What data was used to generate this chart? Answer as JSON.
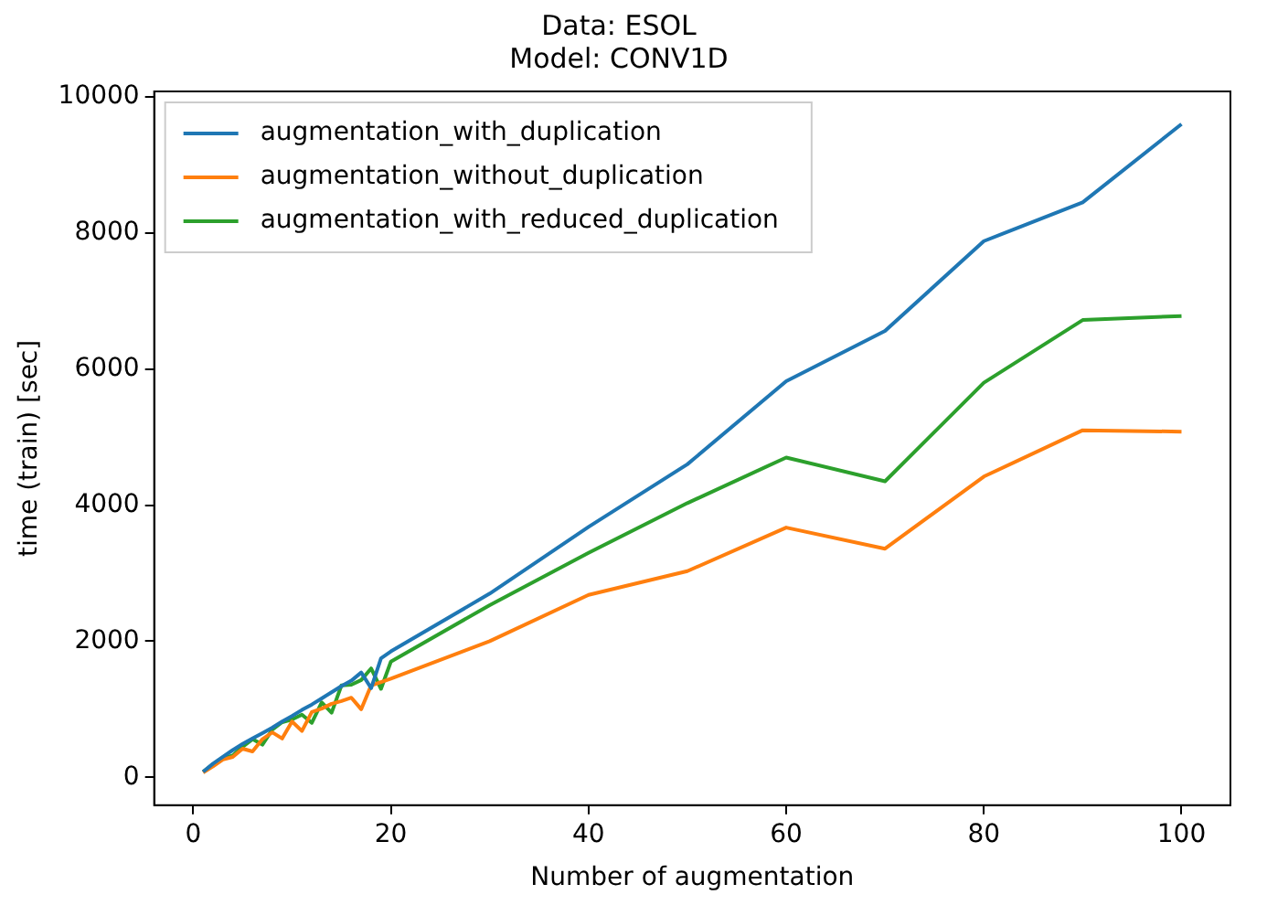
{
  "chart_data": {
    "type": "line",
    "title": "Data: ESOL\nModel: CONV1D",
    "xlabel": "Number of augmentation",
    "ylabel": "time (train) [sec]",
    "x": [
      1,
      2,
      3,
      4,
      5,
      6,
      7,
      8,
      9,
      10,
      11,
      12,
      13,
      14,
      15,
      16,
      17,
      18,
      19,
      20,
      30,
      40,
      50,
      60,
      70,
      80,
      90,
      100
    ],
    "series": [
      {
        "name": "augmentation_with_duplication",
        "color": "#1f77b4",
        "values": [
          80,
          200,
          300,
          400,
          490,
          570,
          650,
          730,
          820,
          900,
          990,
          1070,
          1160,
          1250,
          1340,
          1420,
          1540,
          1310,
          1750,
          1850,
          2700,
          3680,
          4600,
          5820,
          6560,
          7880,
          8450,
          9600
        ]
      },
      {
        "name": "augmentation_without_duplication",
        "color": "#ff7f0e",
        "values": [
          70,
          160,
          260,
          300,
          420,
          380,
          560,
          660,
          570,
          820,
          680,
          960,
          1010,
          1080,
          1120,
          1170,
          1000,
          1350,
          1400,
          1450,
          2000,
          2680,
          3030,
          3670,
          3360,
          4420,
          5100,
          5080
        ]
      },
      {
        "name": "augmentation_with_reduced_duplication",
        "color": "#2ca02c",
        "values": [
          80,
          190,
          280,
          320,
          450,
          560,
          480,
          700,
          810,
          850,
          920,
          800,
          1100,
          950,
          1350,
          1360,
          1430,
          1600,
          1300,
          1700,
          2530,
          3300,
          4030,
          4700,
          4350,
          5800,
          6720,
          6780
        ]
      }
    ],
    "xlim": [
      -3.95,
      104.95
    ],
    "xticks": [
      0,
      20,
      40,
      60,
      80,
      100
    ],
    "ylim": [
      -410,
      10080
    ],
    "yticks": [
      0,
      2000,
      4000,
      6000,
      8000,
      10000
    ],
    "grid": false,
    "legend": "top left",
    "marker": "none",
    "line_style": "solid"
  }
}
